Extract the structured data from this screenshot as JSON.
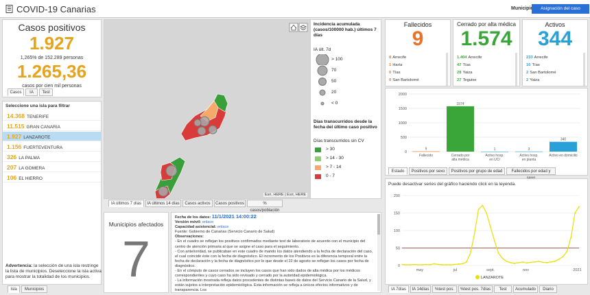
{
  "header": {
    "title": "COVID-19 Canarias",
    "municipio_label": "Municipio",
    "asignacion_button": "Asignación del caso"
  },
  "positivos": {
    "title": "Casos positivos",
    "count": "1.927",
    "pct_line": "1,265% de 152.289 personas",
    "rate": "1.265,36",
    "rate_label": "casos por cien mil personas",
    "tabs": [
      "Casos",
      "IA",
      "Test"
    ]
  },
  "islands": {
    "title": "Seleccione una isla para filtrar",
    "items": [
      {
        "value": "14.368",
        "name": "TENERIFE",
        "selected": false
      },
      {
        "value": "11.515",
        "name": "GRAN CANARIA",
        "selected": false
      },
      {
        "value": "1.927",
        "name": "LANZAROTE",
        "selected": true
      },
      {
        "value": "1.156",
        "name": "FUERTEVENTURA",
        "selected": false
      },
      {
        "value": "326",
        "name": "LA PALMA",
        "selected": false
      },
      {
        "value": "207",
        "name": "LA GOMERA",
        "selected": false
      },
      {
        "value": "106",
        "name": "EL HIERRO",
        "selected": false
      }
    ],
    "advert_bold": "Advertencia:",
    "advert_text": " la selección de una isla restringe la lista de municipios. Deseleccione la isla activa para mostrar la totalidad de los municipios.",
    "tabs": [
      "Isla",
      "Municipios"
    ]
  },
  "map": {
    "attribution": "Esri, HERE | Esri, HERE",
    "tabs": [
      "IA últimos 7 días",
      "IA últimos 14 días",
      "Casos activos",
      "Casos positivos",
      "% casos/población"
    ],
    "legend": {
      "title": "Incidencia acumulada (casos/100000 hab.) últimos 7 días",
      "sub": "IA últ. 7d",
      "sizes": [
        "> 100",
        "70",
        "50",
        "20",
        "< 0"
      ],
      "title2": "Días transcurridos desde la fecha del último caso positivo",
      "sub2": "Días transcurridos sin CV",
      "colors": [
        {
          "label": "> 30",
          "color": "#3a9e3a"
        },
        {
          "label": "> 14 - 30",
          "color": "#8fcf6f"
        },
        {
          "label": "> 7 - 14",
          "color": "#f5a96b"
        },
        {
          "label": "0 - 7",
          "color": "#d93b3b"
        }
      ]
    }
  },
  "afectados": {
    "title": "Municipios afectados",
    "count": "7"
  },
  "info": {
    "fecha_label": "Fecha de los datos:",
    "fecha": "11/1/2021 14:00:22",
    "version_label": "Versión móvil:",
    "version_link": "enlace",
    "capacidad_label": "Capacidad asistencial:",
    "capacidad_link": "enlace",
    "fuente": "Fuente: Gobierno de Canarias (Servicio Canario de Salud)",
    "obs": "Observaciones:",
    "lines": [
      "- En el cuadro se reflejan los positivos confirmados mediante test de laboratorio de acuerdo con el municipio del centro de atención primaria al que se asigne el caso para el seguimiento.",
      "- Con anterioridad, se publicaban en este cuadro de mando los datos atendiendo a la fecha de declaración del caso, el cual coincide éste con la fecha de diagnóstico. El incremento de los Positivos es la diferencia temporal entre la fecha de declaración y la fecha de diagnóstico por lo que desde el 22 de agosto se reflejan los casos por fecha de diagnóstico.",
      "- En el cómputo de casos cerrados se incluyen los casos que han sido dados de alta médica por los médicos correspondientes y cuyo caso ha sido revisado y cerrado por la autoridad epidemiológica.",
      "- La información mostrada refleja datos procedentes de distintas bases de datos del Servicio Canario de la Salud, y están sujetos a interpretación epidemiológica. Esta información se refleja a únicos efectos informativos y de transparencia. Los"
    ]
  },
  "fallecidos": {
    "title": "Fallecidos",
    "count": "9",
    "color": "#e8722a",
    "rows": [
      {
        "v": "8",
        "n": "Arrecife"
      },
      {
        "v": "1",
        "n": "Haría"
      },
      {
        "v": "0",
        "n": "Tías"
      },
      {
        "v": "0",
        "n": "San Bartolomé"
      }
    ]
  },
  "cerrado": {
    "title": "Cerrado por alta médica",
    "count": "1.574",
    "color": "#3aa63a",
    "rows": [
      {
        "v": "1.404",
        "n": "Arrecife"
      },
      {
        "v": "47",
        "n": "Tías"
      },
      {
        "v": "28",
        "n": "Yaiza"
      },
      {
        "v": "27",
        "n": "Teguise"
      }
    ]
  },
  "activos": {
    "title": "Activos",
    "count": "344",
    "color": "#2aa0d8",
    "rows": [
      {
        "v": "233",
        "n": "Arrecife"
      },
      {
        "v": "16",
        "n": "Tías"
      },
      {
        "v": "2",
        "n": "San Bartolomé"
      },
      {
        "v": "2",
        "n": "Yaiza"
      }
    ]
  },
  "estado": {
    "tabs": [
      "Estado",
      "Positivos por sexo",
      "Positivos por grupo de edad",
      "Fallecidos por edad y sexo"
    ]
  },
  "serie": {
    "note": "Puede desactivar series del gráfico haciendo click en la leyenda.",
    "legend": "LANZAROTE",
    "tabs": [
      "IA 7días",
      "IA 14días",
      "%test pos.",
      "%test pos. 7días",
      "Test",
      "Acumulado",
      "Diario"
    ]
  },
  "chart_data": [
    {
      "type": "bar",
      "categories": [
        "Fallecido",
        "Cerrado por alta médica",
        "Activo hosp. en UCI",
        "Activo hosp. en planta",
        "Activo en domicilio"
      ],
      "values": [
        9,
        1574,
        1,
        3,
        340
      ],
      "colors": [
        "#e8722a",
        "#3aa63a",
        "#2aa0d8",
        "#2aa0d8",
        "#2aa0d8"
      ],
      "yticks": [
        0,
        500,
        1000,
        1500,
        2000
      ],
      "ylim": [
        0,
        2000
      ],
      "grid": true
    },
    {
      "type": "line",
      "series": [
        {
          "name": "LANZAROTE",
          "color": "#e8e000"
        }
      ],
      "x_labels": [
        "may",
        "jul",
        "sept.",
        "nov",
        "2021"
      ],
      "yticks": [
        0,
        50,
        100,
        150,
        200
      ],
      "ylim": [
        0,
        200
      ],
      "threshold": 50,
      "values": [
        3,
        2,
        2,
        3,
        2,
        2,
        3,
        2,
        5,
        3,
        2,
        2,
        2,
        3,
        4,
        5,
        10,
        35,
        90,
        160,
        172,
        150,
        110,
        70,
        35,
        20,
        12,
        8,
        6,
        8,
        10,
        7,
        9,
        10,
        12,
        9,
        8,
        10,
        12,
        18,
        25,
        40,
        80,
        150,
        168
      ]
    }
  ]
}
